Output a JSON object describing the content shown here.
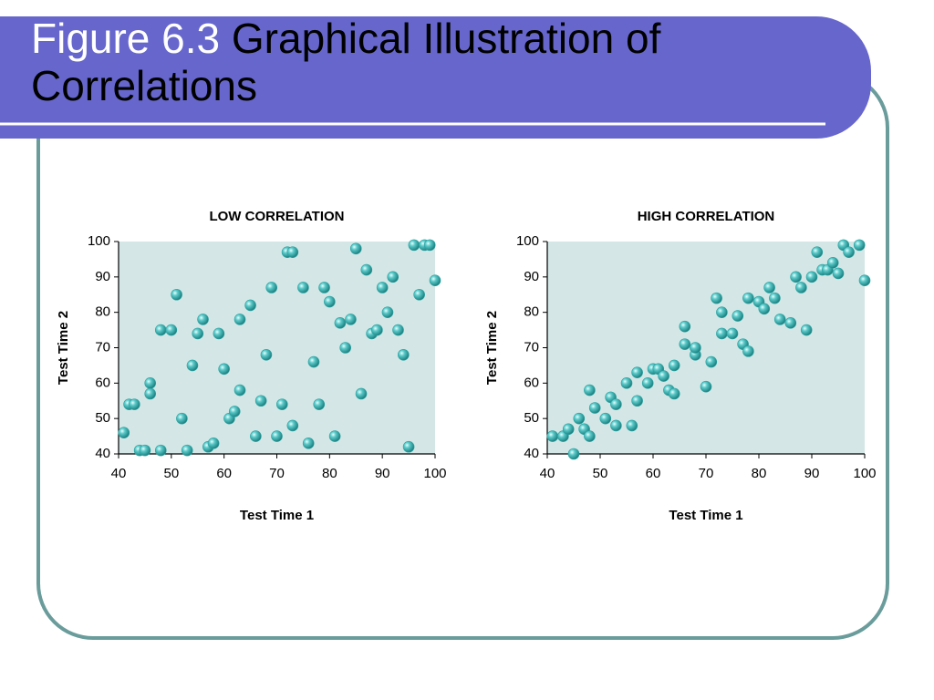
{
  "slide": {
    "title_lead": "Figure 6.3",
    "title_rest": "Graphical Illustration of Correlations"
  },
  "chart_data": [
    {
      "type": "scatter",
      "title": "LOW CORRELATION",
      "x_label": "Test Time 1",
      "y_label": "Test Time 2",
      "color": "#2aa3a3",
      "x": [
        41,
        42,
        43,
        44,
        45,
        46,
        46,
        48,
        48,
        50,
        51,
        52,
        53,
        54,
        55,
        56,
        57,
        58,
        59,
        60,
        61,
        62,
        63,
        63,
        65,
        66,
        67,
        68,
        69,
        70,
        71,
        72,
        73,
        73,
        75,
        76,
        77,
        78,
        79,
        80,
        81,
        82,
        83,
        84,
        85,
        86,
        87,
        88,
        89,
        90,
        91,
        92,
        93,
        94,
        95,
        96,
        98,
        99,
        97,
        100
      ],
      "values": [
        46,
        54,
        54,
        41,
        41,
        57,
        60,
        41,
        75,
        75,
        85,
        50,
        41,
        65,
        74,
        78,
        42,
        43,
        74,
        64,
        50,
        52,
        78,
        58,
        82,
        45,
        55,
        68,
        87,
        45,
        54,
        97,
        97,
        48,
        87,
        43,
        66,
        54,
        87,
        83,
        45,
        77,
        70,
        78,
        98,
        57,
        92,
        74,
        75,
        87,
        80,
        90,
        75,
        68,
        42,
        99,
        99,
        99,
        85,
        89
      ],
      "xlim": [
        40,
        100
      ],
      "xticks": [
        40,
        50,
        60,
        70,
        80,
        90,
        100
      ],
      "ylim": [
        40,
        100
      ],
      "yticks": [
        40,
        50,
        60,
        70,
        80,
        90,
        100
      ]
    },
    {
      "type": "scatter",
      "title": "HIGH CORRELATION",
      "x_label": "Test Time 1",
      "y_label": "Test Time 2",
      "color": "#2aa3a3",
      "x": [
        41,
        43,
        44,
        45,
        46,
        47,
        48,
        48,
        49,
        51,
        52,
        53,
        53,
        55,
        56,
        57,
        57,
        59,
        60,
        61,
        62,
        63,
        64,
        64,
        66,
        66,
        68,
        68,
        70,
        71,
        72,
        73,
        73,
        75,
        76,
        77,
        78,
        78,
        80,
        81,
        82,
        83,
        84,
        86,
        87,
        88,
        89,
        90,
        91,
        92,
        93,
        94,
        95,
        96,
        97,
        99,
        100
      ],
      "values": [
        45,
        45,
        47,
        40,
        50,
        47,
        58,
        45,
        53,
        50,
        56,
        48,
        54,
        60,
        48,
        63,
        55,
        60,
        64,
        64,
        62,
        58,
        57,
        65,
        76,
        71,
        68,
        70,
        59,
        66,
        84,
        80,
        74,
        74,
        79,
        71,
        69,
        84,
        83,
        81,
        87,
        84,
        78,
        77,
        90,
        87,
        75,
        90,
        97,
        92,
        92,
        94,
        91,
        99,
        97,
        99,
        89
      ],
      "xlim": [
        40,
        100
      ],
      "xticks": [
        40,
        50,
        60,
        70,
        80,
        90,
        100
      ],
      "ylim": [
        40,
        100
      ],
      "yticks": [
        40,
        50,
        60,
        70,
        80,
        90,
        100
      ]
    }
  ]
}
